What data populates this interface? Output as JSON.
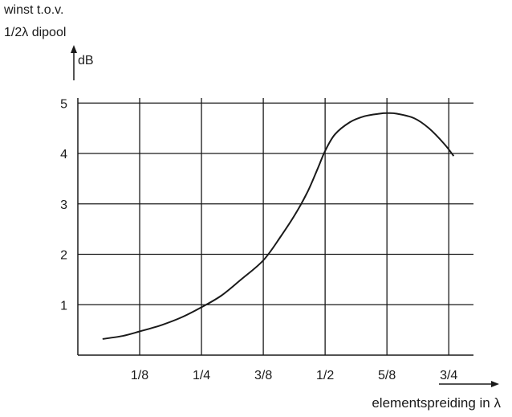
{
  "chart_data": {
    "type": "line",
    "ylabel_line1": "winst t.o.v.",
    "ylabel_line2": "1/2λ dipool",
    "yunit": "dB",
    "xlabel": "elementspreiding in λ",
    "x_ticks": [
      {
        "value": 0.125,
        "label": "1/8"
      },
      {
        "value": 0.25,
        "label": "1/4"
      },
      {
        "value": 0.375,
        "label": "3/8"
      },
      {
        "value": 0.5,
        "label": "1/2"
      },
      {
        "value": 0.625,
        "label": "5/8"
      },
      {
        "value": 0.75,
        "label": "3/4"
      }
    ],
    "y_ticks": [
      {
        "value": 1,
        "label": "1"
      },
      {
        "value": 2,
        "label": "2"
      },
      {
        "value": 3,
        "label": "3"
      },
      {
        "value": 4,
        "label": "4"
      },
      {
        "value": 5,
        "label": "5"
      }
    ],
    "xlim": [
      0,
      0.8
    ],
    "ylim": [
      0,
      5.1
    ],
    "grid": true,
    "series": [
      {
        "x": [
          0.05,
          0.09,
          0.125,
          0.17,
          0.21,
          0.25,
          0.29,
          0.33,
          0.375,
          0.41,
          0.44,
          0.465,
          0.485,
          0.5,
          0.52,
          0.55,
          0.58,
          0.61,
          0.625,
          0.645,
          0.68,
          0.71,
          0.74,
          0.76
        ],
        "y": [
          0.32,
          0.38,
          0.47,
          0.6,
          0.75,
          0.95,
          1.18,
          1.5,
          1.88,
          2.35,
          2.8,
          3.25,
          3.7,
          4.05,
          4.38,
          4.62,
          4.74,
          4.79,
          4.8,
          4.79,
          4.7,
          4.5,
          4.2,
          3.95
        ]
      }
    ]
  }
}
